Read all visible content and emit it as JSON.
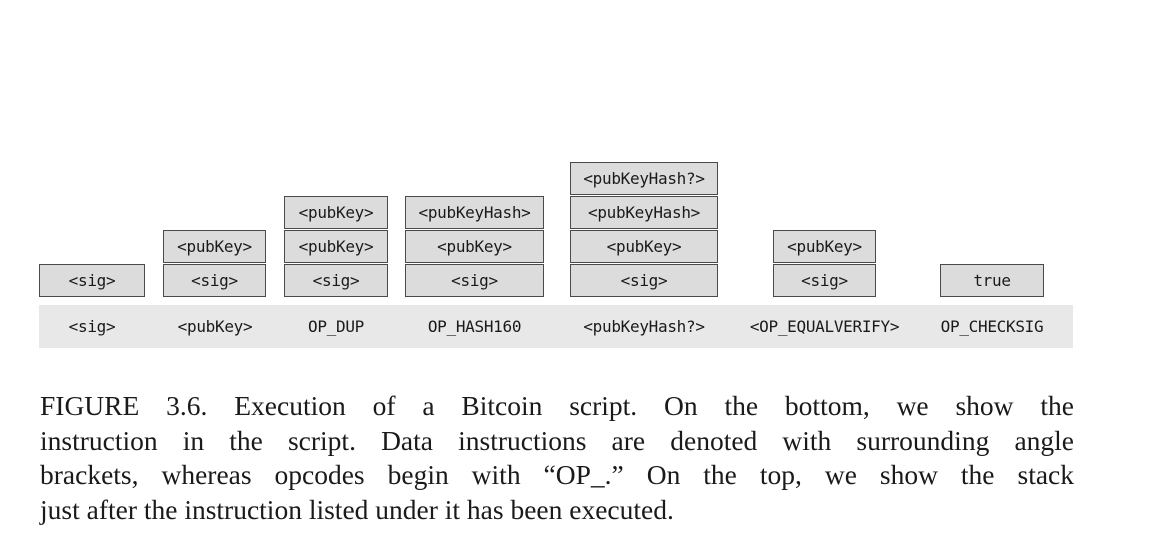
{
  "figure": {
    "columns": [
      {
        "instruction": "<sig>",
        "stack": [
          "<sig>"
        ]
      },
      {
        "instruction": "<pubKey>",
        "stack": [
          "<sig>",
          "<pubKey>"
        ]
      },
      {
        "instruction": "OP_DUP",
        "stack": [
          "<sig>",
          "<pubKey>",
          "<pubKey>"
        ]
      },
      {
        "instruction": "OP_HASH160",
        "stack": [
          "<sig>",
          "<pubKey>",
          "<pubKeyHash>"
        ]
      },
      {
        "instruction": "<pubKeyHash?>",
        "stack": [
          "<sig>",
          "<pubKey>",
          "<pubKeyHash>",
          "<pubKeyHash?>"
        ]
      },
      {
        "instruction": "<OP_EQUALVERIFY>",
        "stack": [
          "<sig>",
          "<pubKey>"
        ]
      },
      {
        "instruction": "OP_CHECKSIG",
        "stack": [
          "true"
        ]
      }
    ]
  },
  "caption": {
    "lines": [
      "FIGURE 3.6. Execution of a Bitcoin script. On the bottom, we show the",
      "instruction in the script. Data instructions are denoted with surrounding angle",
      "brackets, whereas opcodes begin with “OP_.” On the top, we show the stack",
      "just after the instruction listed under it has been executed."
    ]
  },
  "colors": {
    "box_fill": "#dcdcdc",
    "box_border": "#4a4a4a",
    "script_bar": "#e8e8e8",
    "text": "#1a1a1a"
  }
}
